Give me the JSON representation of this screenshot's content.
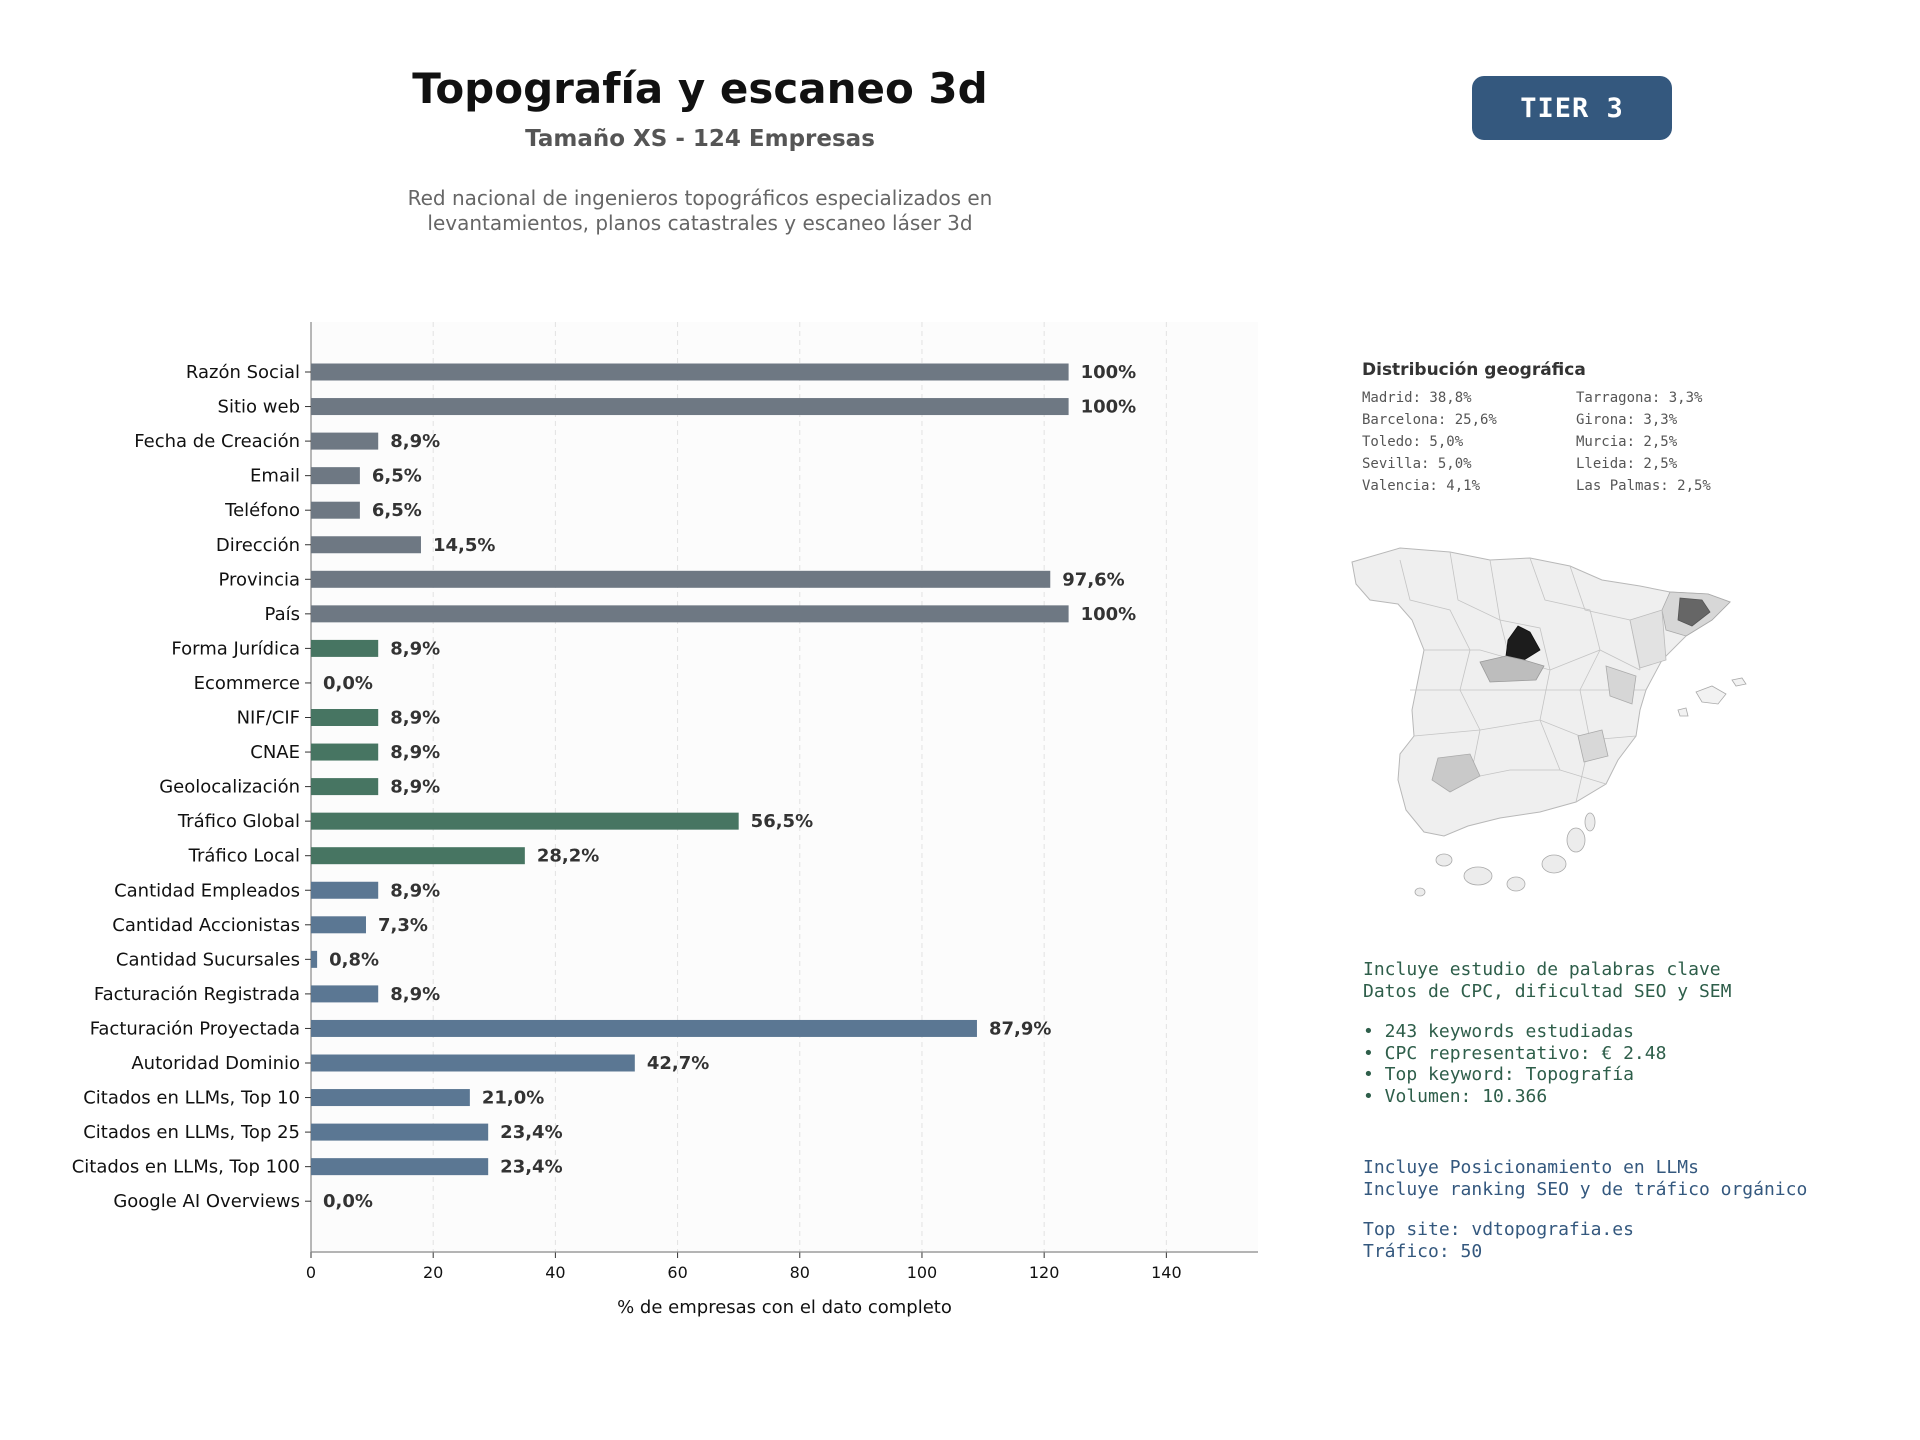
{
  "header": {
    "title": "Topografía y escaneo 3d",
    "subtitle": "Tamaño XS - 124 Empresas",
    "description_line1": "Red nacional de ingenieros topográficos especializados en",
    "description_line2": "levantamientos, planos catastrales y escaneo láser 3d",
    "tier_badge": "TIER 3"
  },
  "colors": {
    "gray_bar": "#6e7883",
    "green_bar": "#477562",
    "blue_bar": "#5b7793",
    "badge_bg": "#34587e",
    "text_green": "#2e5e4a",
    "text_blue": "#34587e"
  },
  "chart_data": {
    "type": "bar",
    "orientation": "horizontal",
    "xlabel": "% de empresas con el dato completo",
    "ylabel": "",
    "xlim": [
      0,
      155
    ],
    "xticks": [
      0,
      20,
      40,
      60,
      80,
      100,
      120,
      140
    ],
    "grid": "vertical dashed",
    "total_companies": 124,
    "bars": [
      {
        "category": "Razón Social",
        "value": 124,
        "label": "100%",
        "group": "gray"
      },
      {
        "category": "Sitio web",
        "value": 124,
        "label": "100%",
        "group": "gray"
      },
      {
        "category": "Fecha de Creación",
        "value": 11,
        "label": "8,9%",
        "group": "gray"
      },
      {
        "category": "Email",
        "value": 8,
        "label": "6,5%",
        "group": "gray"
      },
      {
        "category": "Teléfono",
        "value": 8,
        "label": "6,5%",
        "group": "gray"
      },
      {
        "category": "Dirección",
        "value": 18,
        "label": "14,5%",
        "group": "gray"
      },
      {
        "category": "Provincia",
        "value": 121,
        "label": "97,6%",
        "group": "gray"
      },
      {
        "category": "País",
        "value": 124,
        "label": "100%",
        "group": "gray"
      },
      {
        "category": "Forma Jurídica",
        "value": 11,
        "label": "8,9%",
        "group": "green"
      },
      {
        "category": "Ecommerce",
        "value": 0,
        "label": "0,0%",
        "group": "green"
      },
      {
        "category": "NIF/CIF",
        "value": 11,
        "label": "8,9%",
        "group": "green"
      },
      {
        "category": "CNAE",
        "value": 11,
        "label": "8,9%",
        "group": "green"
      },
      {
        "category": "Geolocalización",
        "value": 11,
        "label": "8,9%",
        "group": "green"
      },
      {
        "category": "Tráfico Global",
        "value": 70,
        "label": "56,5%",
        "group": "green"
      },
      {
        "category": "Tráfico Local",
        "value": 35,
        "label": "28,2%",
        "group": "green"
      },
      {
        "category": "Cantidad Empleados",
        "value": 11,
        "label": "8,9%",
        "group": "blue"
      },
      {
        "category": "Cantidad Accionistas",
        "value": 9,
        "label": "7,3%",
        "group": "blue"
      },
      {
        "category": "Cantidad Sucursales",
        "value": 1,
        "label": "0,8%",
        "group": "blue"
      },
      {
        "category": "Facturación Registrada",
        "value": 11,
        "label": "8,9%",
        "group": "blue"
      },
      {
        "category": "Facturación Proyectada",
        "value": 109,
        "label": "87,9%",
        "group": "blue"
      },
      {
        "category": "Autoridad Dominio",
        "value": 53,
        "label": "42,7%",
        "group": "blue"
      },
      {
        "category": "Citados en LLMs, Top 10",
        "value": 26,
        "label": "21,0%",
        "group": "blue"
      },
      {
        "category": "Citados en LLMs, Top 25",
        "value": 29,
        "label": "23,4%",
        "group": "blue"
      },
      {
        "category": "Citados en LLMs, Top 100",
        "value": 29,
        "label": "23,4%",
        "group": "blue"
      },
      {
        "category": "Google AI Overviews",
        "value": 0,
        "label": "0,0%",
        "group": "blue"
      }
    ]
  },
  "geo": {
    "title": "Distribución geográfica",
    "entries": [
      "Madrid: 38,8%",
      "Tarragona: 3,3%",
      "Barcelona: 25,6%",
      "Girona: 3,3%",
      "Toledo: 5,0%",
      "Murcia: 2,5%",
      "Sevilla: 5,0%",
      "Lleida: 2,5%",
      "Valencia: 4,1%",
      "Las Palmas: 2,5%"
    ]
  },
  "keywords": {
    "line1": "Incluye estudio de palabras clave",
    "line2": "Datos de CPC, dificultad SEO y SEM",
    "bullet1": "• 243 keywords estudiadas",
    "bullet2": "• CPC representativo: € 2.48",
    "bullet3": "• Top keyword: Topografía",
    "bullet4": "• Volumen: 10.366"
  },
  "llm": {
    "line1": "Incluye Posicionamiento en LLMs",
    "line2": "Incluye ranking SEO y de tráfico orgánico",
    "top_site": "Top site: vdtopografia.es",
    "traffic": "Tráfico: 50"
  }
}
